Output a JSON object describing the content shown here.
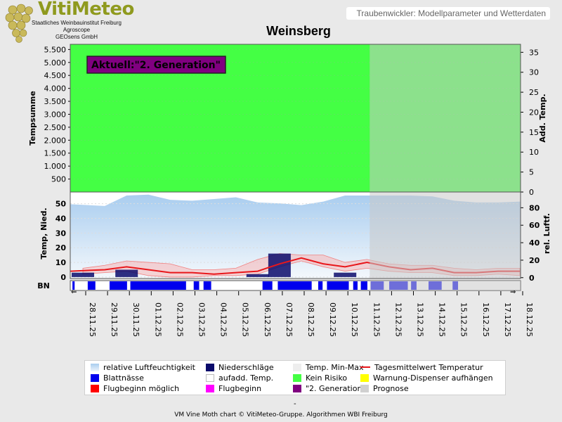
{
  "header": {
    "logo_text": "VitiMeteo",
    "org_lines": [
      "Staatliches Weinbauinstitut Freiburg",
      "Agroscope",
      "GEOsens GmbH"
    ],
    "subtitle": "Traubenwickler: Modellparameter und Wetterdaten"
  },
  "footer": {
    "dash": "-",
    "text": "VM Vine Moth chart © VitiMeteo-Gruppe. Algorithmen WBI Freiburg"
  },
  "colors": {
    "kein_risiko": "#44ff44",
    "prognose_overlay": "#c8c8c8",
    "humidity_fill": "#9fc5ea",
    "precip": "#0a0a6b",
    "temp_band": "#f7b4b4",
    "temp_line": "#e8171b",
    "blattnaesse": "#0000ee",
    "generation_box": "#800080"
  },
  "chart_data": [
    {
      "type": "area",
      "title": "Weinsberg",
      "ylabel": "Tempsumme",
      "y2label": "Add. Temp.",
      "y_ticks": [
        "500",
        "1.000",
        "1.500",
        "2.000",
        "2.500",
        "3.000",
        "3.500",
        "4.000",
        "4.500",
        "5.000",
        "5.500"
      ],
      "y2_ticks": [
        "0",
        "5",
        "10",
        "15",
        "20",
        "25",
        "30",
        "35"
      ],
      "ylim": [
        0,
        5700
      ],
      "y2lim": [
        0,
        37
      ],
      "status": "Kein Risiko",
      "annotation": "Aktuell:\"2. Generation\""
    },
    {
      "type": "line",
      "ylabel": "Temp, Nied.",
      "y2label": "rel. Luftf.",
      "y_ticks": [
        "0",
        "10",
        "20",
        "30",
        "40",
        "50"
      ],
      "y2_ticks": [
        "0",
        "20",
        "40",
        "60",
        "80"
      ],
      "ylim": [
        -1,
        58
      ],
      "y2lim": [
        -1,
        98
      ],
      "x_labels": [
        "28.11.25",
        "29.11.25",
        "30.11.25",
        "01.12.25",
        "02.12.25",
        "03.12.25",
        "04.12.25",
        "05.12.25",
        "06.12.25",
        "07.12.25",
        "08.12.25",
        "09.12.25",
        "10.12.25",
        "11.12.25",
        "12.12.25",
        "13.12.25",
        "14.12.25",
        "15.12.25",
        "16.12.25",
        "17.12.25",
        "18.12.25"
      ],
      "forecast_from": "11.12.25",
      "series": [
        {
          "name": "relative Luftfeuchtigkeit",
          "values": [
            84,
            82,
            94,
            95,
            89,
            88,
            90,
            92,
            86,
            85,
            83,
            87,
            94,
            94,
            94,
            94,
            93,
            88,
            86,
            86,
            87
          ]
        },
        {
          "name": "Niederschläge",
          "values": [
            3,
            0,
            5,
            0,
            0,
            0,
            0,
            0,
            2,
            16,
            0,
            0,
            3,
            0,
            0,
            0,
            0,
            0,
            0,
            0,
            0
          ]
        },
        {
          "name": "Temp. Min-Max",
          "min": [
            2,
            3,
            4,
            1,
            0,
            0,
            1,
            1,
            2,
            7,
            11,
            7,
            4,
            6,
            4,
            3,
            3,
            1,
            1,
            2,
            1
          ],
          "max": [
            6,
            8,
            11,
            10,
            9,
            5,
            5,
            6,
            12,
            16,
            15,
            15,
            10,
            12,
            9,
            8,
            8,
            6,
            5,
            6,
            6
          ]
        },
        {
          "name": "Tagesmittelwert Temperatur",
          "values": [
            4,
            5,
            7,
            5,
            3,
            3,
            2,
            3,
            4,
            9,
            13,
            9,
            7,
            10,
            7,
            5,
            6,
            3,
            3,
            4,
            4
          ]
        }
      ]
    },
    {
      "type": "heatmap",
      "ylabel": "BN",
      "series_name": "Blattnässe",
      "segments": [
        [
          0.1,
          0.2
        ],
        [
          0.8,
          1.15
        ],
        [
          1.8,
          2.6
        ],
        [
          2.75,
          5.3
        ],
        [
          5.65,
          5.9
        ],
        [
          6.1,
          6.45
        ],
        [
          8.8,
          9.25
        ],
        [
          9.5,
          11.05
        ],
        [
          11.35,
          11.55
        ],
        [
          11.75,
          12.75
        ],
        [
          12.95,
          13.15
        ],
        [
          13.3,
          13.6
        ],
        [
          13.75,
          14.35
        ],
        [
          14.6,
          15.45
        ],
        [
          15.6,
          15.85
        ],
        [
          16.4,
          17.0
        ],
        [
          17.5,
          17.75
        ]
      ]
    }
  ],
  "legend": [
    {
      "label": "relative Luftfeuchtigkeit",
      "swatch": "gradient"
    },
    {
      "label": "Niederschläge",
      "swatch": "#0a0a6b"
    },
    {
      "label": "Temp. Min-Max",
      "swatch": "#eeeeee"
    },
    {
      "label": "Tagesmittelwert Temperatur",
      "swatch": "line"
    },
    {
      "label": "Blattnässe",
      "swatch": "#0000ee"
    },
    {
      "label": "aufadd. Temp.",
      "swatch": "outline"
    },
    {
      "label": "Kein Risiko",
      "swatch": "#44ff44"
    },
    {
      "label": "Warnung-Dispenser aufhängen",
      "swatch": "#ffff00"
    },
    {
      "label": "Flugbeginn möglich",
      "swatch": "#ff0000"
    },
    {
      "label": "Flugbeginn",
      "swatch": "#ff00ff"
    },
    {
      "label": "\"2. Generation\"",
      "swatch": "#800080"
    },
    {
      "label": "Prognose",
      "swatch": "#d0d0d0"
    }
  ]
}
